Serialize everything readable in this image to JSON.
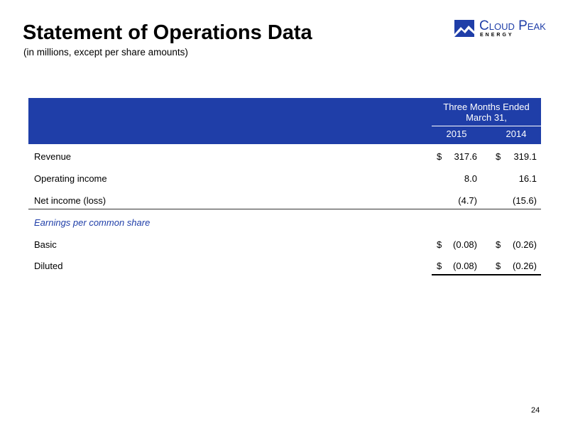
{
  "header": {
    "title": "Statement of Operations Data",
    "subtitle": "(in millions, except per share amounts)"
  },
  "logo": {
    "name": "Cloud Peak",
    "tagline": "ENERGY"
  },
  "table": {
    "period_header": "Three Months Ended March 31,",
    "columns": [
      "2015",
      "2014"
    ],
    "rows": [
      {
        "label": "Revenue",
        "cells": [
          {
            "currency": "$",
            "value": "317.6"
          },
          {
            "currency": "$",
            "value": "319.1"
          }
        ]
      },
      {
        "label": "Operating income",
        "cells": [
          {
            "value": "8.0"
          },
          {
            "value": "16.1"
          }
        ]
      },
      {
        "label": "Net income (loss)",
        "cells": [
          {
            "value": "(4.7)"
          },
          {
            "value": "(15.6)"
          }
        ]
      },
      {
        "label": "Earnings per common share",
        "section": true
      },
      {
        "label": "Basic",
        "cells": [
          {
            "currency": "$",
            "value": "(0.08)"
          },
          {
            "currency": "$",
            "value": "(0.26)"
          }
        ]
      },
      {
        "label": "Diluted",
        "cells": [
          {
            "currency": "$",
            "value": "(0.08)"
          },
          {
            "currency": "$",
            "value": "(0.26)"
          }
        ]
      }
    ]
  },
  "footer": {
    "page_number": "24"
  }
}
